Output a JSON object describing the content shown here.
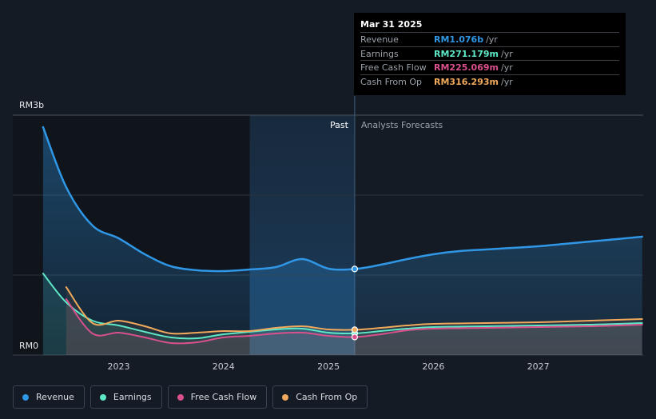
{
  "chart_data": {
    "type": "area",
    "y_axis_labels": {
      "top": "RM3b",
      "bottom": "RM0"
    },
    "ylim": [
      0,
      3
    ],
    "y_unit": "RM billions",
    "xlim": [
      2022.25,
      2028.0
    ],
    "x_ticks": [
      "2023",
      "2024",
      "2025",
      "2026",
      "2027"
    ],
    "x_tick_values": [
      2023,
      2024,
      2025,
      2026,
      2027
    ],
    "divider_x": 2025.25,
    "past_label": "Past",
    "forecast_label": "Analysts Forecasts",
    "series": [
      {
        "name": "Revenue",
        "color": "#2f97e6",
        "x": [
          2022.28,
          2022.5,
          2022.75,
          2023.0,
          2023.25,
          2023.5,
          2023.75,
          2024.0,
          2024.25,
          2024.5,
          2024.75,
          2025.0,
          2025.25,
          2025.5,
          2025.75,
          2026.0,
          2026.25,
          2026.5,
          2026.75,
          2027.0,
          2027.25,
          2027.5,
          2027.75,
          2027.99
        ],
        "y": [
          2.85,
          2.1,
          1.62,
          1.46,
          1.26,
          1.11,
          1.06,
          1.05,
          1.07,
          1.1,
          1.2,
          1.08,
          1.076,
          1.13,
          1.2,
          1.26,
          1.3,
          1.32,
          1.34,
          1.36,
          1.39,
          1.42,
          1.45,
          1.48
        ]
      },
      {
        "name": "Earnings",
        "color": "#5ee8c8",
        "x": [
          2022.28,
          2022.5,
          2022.75,
          2023.0,
          2023.25,
          2023.5,
          2023.75,
          2024.0,
          2024.25,
          2024.5,
          2024.75,
          2025.0,
          2025.25,
          2025.5,
          2025.75,
          2026.0,
          2026.5,
          2027.0,
          2027.5,
          2027.99
        ],
        "y": [
          1.02,
          0.66,
          0.43,
          0.37,
          0.29,
          0.22,
          0.21,
          0.26,
          0.29,
          0.32,
          0.33,
          0.28,
          0.271,
          0.3,
          0.33,
          0.35,
          0.36,
          0.37,
          0.38,
          0.4
        ]
      },
      {
        "name": "Free Cash Flow",
        "color": "#d9508c",
        "x": [
          2022.5,
          2022.75,
          2023.0,
          2023.25,
          2023.5,
          2023.75,
          2024.0,
          2024.25,
          2024.5,
          2024.75,
          2025.0,
          2025.25,
          2025.5,
          2025.75,
          2026.0,
          2026.5,
          2027.0,
          2027.5,
          2027.99
        ],
        "y": [
          0.7,
          0.27,
          0.28,
          0.22,
          0.15,
          0.16,
          0.22,
          0.24,
          0.27,
          0.28,
          0.24,
          0.225,
          0.26,
          0.31,
          0.33,
          0.34,
          0.35,
          0.36,
          0.38
        ]
      },
      {
        "name": "Cash From Op",
        "color": "#f1a95c",
        "x": [
          2022.5,
          2022.75,
          2023.0,
          2023.25,
          2023.5,
          2023.75,
          2024.0,
          2024.25,
          2024.5,
          2024.75,
          2025.0,
          2025.25,
          2025.5,
          2025.75,
          2026.0,
          2026.5,
          2027.0,
          2027.5,
          2027.99
        ],
        "y": [
          0.85,
          0.4,
          0.43,
          0.36,
          0.27,
          0.28,
          0.3,
          0.3,
          0.34,
          0.36,
          0.32,
          0.316,
          0.34,
          0.37,
          0.39,
          0.4,
          0.41,
          0.43,
          0.45
        ]
      }
    ]
  },
  "tooltip": {
    "date": "Mar 31 2025",
    "rows": [
      {
        "name": "Revenue",
        "value": "RM1.076b",
        "unit": "/yr",
        "color": "#2f97e6"
      },
      {
        "name": "Earnings",
        "value": "RM271.179m",
        "unit": "/yr",
        "color": "#5ee8c8"
      },
      {
        "name": "Free Cash Flow",
        "value": "RM225.069m",
        "unit": "/yr",
        "color": "#d9508c"
      },
      {
        "name": "Cash From Op",
        "value": "RM316.293m",
        "unit": "/yr",
        "color": "#f1a95c"
      }
    ]
  },
  "legend": [
    {
      "label": "Revenue",
      "color": "#2f97e6"
    },
    {
      "label": "Earnings",
      "color": "#5ee8c8"
    },
    {
      "label": "Free Cash Flow",
      "color": "#d9508c"
    },
    {
      "label": "Cash From Op",
      "color": "#f1a95c"
    }
  ]
}
